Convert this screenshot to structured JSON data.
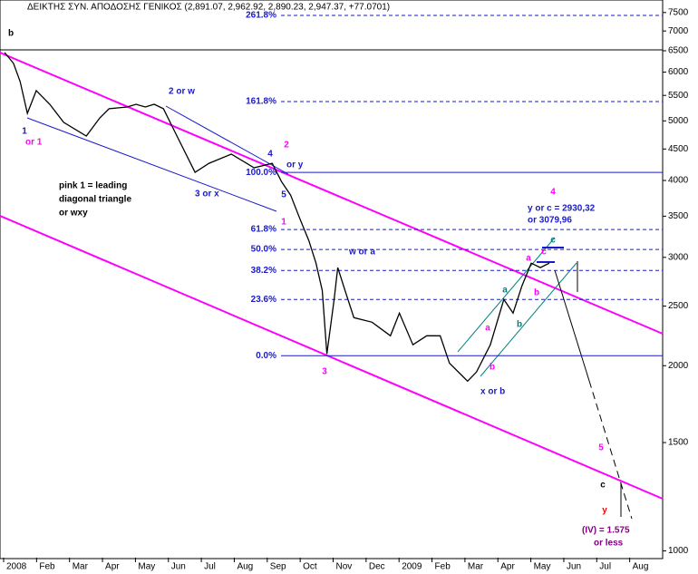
{
  "chart_data": {
    "type": "line",
    "title": "ΔΕΙΚΤΗΣ ΣΥΝ. ΑΠΟΔΟΣΗΣ ΓΕΝΙΚΟΣ (2,891.07, 2,962.92, 2,890.23, 2,947.37, +77.0701)",
    "log_scale": true,
    "grid": false,
    "x": [
      0.03,
      0.3,
      0.5,
      0.72,
      0.99,
      1.4,
      1.82,
      2.51,
      2.92,
      3.2,
      3.75,
      4.02,
      4.3,
      4.57,
      4.85,
      5.26,
      5.81,
      6.23,
      6.91,
      7.6,
      8.15,
      8.43,
      8.71,
      8.98,
      9.26,
      9.48,
      9.67,
      9.81,
      10.03,
      10.14,
      10.36,
      10.63,
      11.18,
      11.74,
      12.01,
      12.42,
      12.84,
      13.25,
      13.53,
      14.08,
      14.35,
      14.77,
      15.18,
      15.46,
      15.73,
      16.01,
      16.29,
      16.56
    ],
    "series": [
      {
        "color": "#000000",
        "values": [
          6457,
          6201,
          5794,
          5142,
          5600,
          5321,
          4972,
          4725,
          5057,
          5232,
          5267,
          5321,
          5267,
          5321,
          5232,
          4725,
          4123,
          4266,
          4415,
          4195,
          4266,
          3986,
          3787,
          3479,
          3197,
          2936,
          2651,
          2090,
          2563,
          2887,
          2651,
          2394,
          2354,
          2237,
          2435,
          2163,
          2237,
          2237,
          2020,
          1888,
          1953,
          2163,
          2563,
          2435,
          2697,
          2936,
          2887,
          2936
        ]
      }
    ],
    "xlim": [
      -0.11,
      20
    ],
    "xticks": [
      {
        "value": 0,
        "label": "2008"
      },
      {
        "value": 1,
        "label": "Feb"
      },
      {
        "value": 2,
        "label": "Mar"
      },
      {
        "value": 3,
        "label": "Apr"
      },
      {
        "value": 4,
        "label": "May"
      },
      {
        "value": 5,
        "label": "Jun"
      },
      {
        "value": 6,
        "label": "Jul"
      },
      {
        "value": 7,
        "label": "Aug"
      },
      {
        "value": 8,
        "label": "Sep"
      },
      {
        "value": 9,
        "label": "Oct"
      },
      {
        "value": 10,
        "label": "Nov"
      },
      {
        "value": 11,
        "label": "Dec"
      },
      {
        "value": 12,
        "label": "2009"
      },
      {
        "value": 13,
        "label": "Feb"
      },
      {
        "value": 14,
        "label": "Mar"
      },
      {
        "value": 15,
        "label": "Apr"
      },
      {
        "value": 16,
        "label": "May"
      },
      {
        "value": 17,
        "label": "Jun"
      },
      {
        "value": 18,
        "label": "Jul"
      },
      {
        "value": 19,
        "label": "Aug"
      }
    ],
    "ylim": [
      975,
      7860
    ],
    "yticks": [
      1000,
      1500,
      2000,
      2500,
      3000,
      3500,
      4000,
      4500,
      5000,
      5500,
      6000,
      6500,
      7000,
      7500
    ],
    "fib_levels": [
      {
        "label": "261.8%",
        "value": 7420,
        "solid": false
      },
      {
        "label": "161.8%",
        "value": 5375,
        "solid": false
      },
      {
        "label": "100.0%",
        "value": 4123,
        "solid": true
      },
      {
        "label": "61.8%",
        "value": 3330,
        "solid": false
      },
      {
        "label": "50.0%",
        "value": 3090,
        "solid": false
      },
      {
        "label": "38.2%",
        "value": 2857,
        "solid": false
      },
      {
        "label": "23.6%",
        "value": 2563,
        "solid": false
      },
      {
        "label": "0.0%",
        "value": 2076,
        "solid": true
      }
    ],
    "annotations": [
      {
        "text": "b",
        "color": "#000000"
      },
      {
        "text": "1",
        "color": "#1a1acc"
      },
      {
        "text": "or 1",
        "color": "#ff00ff"
      },
      {
        "text": "2 or w",
        "color": "#1a1acc"
      },
      {
        "text": "4",
        "color": "#1a1acc"
      },
      {
        "text": "2",
        "color": "#ff00ff"
      },
      {
        "text": "or y",
        "color": "#1a1acc"
      },
      {
        "text": "5",
        "color": "#1a1acc"
      },
      {
        "text": "1",
        "color": "#ff00ff"
      },
      {
        "text": "3 or x",
        "color": "#1a1acc"
      },
      {
        "text": "pink 1 = leading",
        "color": "#000000"
      },
      {
        "text": "diagonal triangle",
        "color": "#000000"
      },
      {
        "text": "or wxy",
        "color": "#000000"
      },
      {
        "text": "w or a",
        "color": "#1a1acc"
      },
      {
        "text": "3",
        "color": "#ff00ff"
      },
      {
        "text": "x or b",
        "color": "#1a1acc"
      },
      {
        "text": "a",
        "color": "#ff00ff"
      },
      {
        "text": "b",
        "color": "#ff00ff"
      },
      {
        "text": "a",
        "color": "#008080"
      },
      {
        "text": "b",
        "color": "#008080"
      },
      {
        "text": "a",
        "color": "#ff00ff"
      },
      {
        "text": "b",
        "color": "#ff00ff"
      },
      {
        "text": "c",
        "color": "#ff00ff"
      },
      {
        "text": "c",
        "color": "#008080"
      },
      {
        "text": "4",
        "color": "#ff00ff"
      },
      {
        "text": "y or c = 2930,32",
        "color": "#1a1acc"
      },
      {
        "text": "or 3079,96",
        "color": "#1a1acc"
      },
      {
        "text": "5",
        "color": "#ff00ff"
      },
      {
        "text": "c",
        "color": "#000000"
      },
      {
        "text": "y",
        "color": "#ff0000"
      },
      {
        "text": "(IV) = 1.575",
        "color": "#800080"
      },
      {
        "text": "or  less",
        "color": "#800080"
      }
    ]
  }
}
